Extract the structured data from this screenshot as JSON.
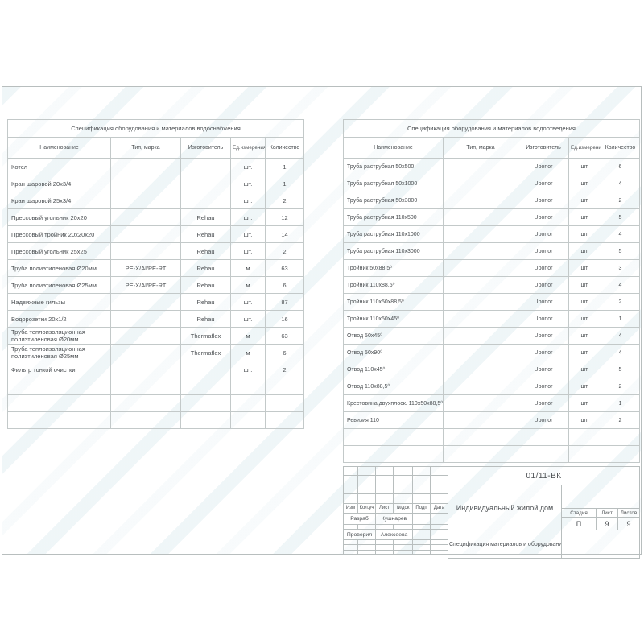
{
  "doc": {
    "number": "01/11-ВК",
    "object_name": "Индивидуальный жилой дом",
    "sheet_name": "Спецификация материалов и оборудования",
    "stamp": {
      "revision_headers": [
        "Изм",
        "Кол.уч",
        "Лист",
        "№док",
        "Подп",
        "Дата"
      ],
      "developed_label": "Разраб",
      "developed_name": "Кушнарев",
      "checked_label": "Проверил",
      "checked_name": "Алексеева",
      "stage_label": "Стадия",
      "sheet_label": "Лист",
      "sheets_label": "Листов",
      "stage_value": "П",
      "sheet_value": "9",
      "sheets_value": "9"
    }
  },
  "tables": [
    {
      "title": "Спецификация оборудования и материалов водоснабжения",
      "headers": [
        "Наименование",
        "Тип, марка",
        "Изготовитель",
        "Ед.измерения",
        "Количество"
      ],
      "rows": [
        [
          "Котел",
          "",
          "",
          "шт.",
          "1"
        ],
        [
          "Кран шаровой 20х3/4",
          "",
          "",
          "шт.",
          "1"
        ],
        [
          "Кран шаровой 25х3/4",
          "",
          "",
          "шт.",
          "2"
        ],
        [
          "Прессовый угольник 20х20",
          "",
          "Rehau",
          "шт.",
          "12"
        ],
        [
          "Прессовый тройник 20х20х20",
          "",
          "Rehau",
          "шт.",
          "14"
        ],
        [
          "Прессовый угольник 25х25",
          "",
          "Rehau",
          "шт.",
          "2"
        ],
        [
          "Труба полиэтиленовая Ø20мм",
          "PE-X/Al/PE-RT",
          "Rehau",
          "м",
          "63"
        ],
        [
          "Труба полиэтиленовая Ø25мм",
          "PE-X/Al/PE-RT",
          "Rehau",
          "м",
          "6"
        ],
        [
          "Надвижные гильзы",
          "",
          "Rehau",
          "шт.",
          "87"
        ],
        [
          "Водорозетки 20х1/2",
          "",
          "Rehau",
          "шт.",
          "16"
        ],
        [
          "Труба теплоизоляционная полиэтиленовая Ø20мм",
          "",
          "Thermaflex",
          "м",
          "63"
        ],
        [
          "Труба теплоизоляционная полиэтиленовая Ø25мм",
          "",
          "Thermaflex",
          "м",
          "6"
        ],
        [
          "Фильтр тонкой очистки",
          "",
          "",
          "шт.",
          "2"
        ]
      ],
      "empty_rows": 3
    },
    {
      "title": "Спецификация оборудования и материалов водоотведения",
      "headers": [
        "Наименование",
        "Тип, марка",
        "Изготовитель",
        "Ед.измерения",
        "Количество"
      ],
      "rows": [
        [
          "Труба раструбная 50х500",
          "",
          "Uponor",
          "шт.",
          "6"
        ],
        [
          "Труба раструбная 50х1000",
          "",
          "Uponor",
          "шт.",
          "4"
        ],
        [
          "Труба раструбная 50х3000",
          "",
          "Uponor",
          "шт.",
          "2"
        ],
        [
          "Труба раструбная 110х500",
          "",
          "Uponor",
          "шт.",
          "5"
        ],
        [
          "Труба раструбная 110х1000",
          "",
          "Uponor",
          "шт.",
          "4"
        ],
        [
          "Труба раструбная 110х3000",
          "",
          "Uponor",
          "шт.",
          "5"
        ],
        [
          "Тройник 50х88,5⁰",
          "",
          "Uponor",
          "шт.",
          "3"
        ],
        [
          "Тройник 110х88,5⁰",
          "",
          "Uponor",
          "шт.",
          "4"
        ],
        [
          "Тройник 110х50х88,5⁰",
          "",
          "Uponor",
          "шт.",
          "2"
        ],
        [
          "Тройник 110х50х45⁰",
          "",
          "Uponor",
          "шт.",
          "1"
        ],
        [
          "Отвод 50х45⁰",
          "",
          "Uponor",
          "шт.",
          "4"
        ],
        [
          "Отвод 50х90⁰",
          "",
          "Uponor",
          "шт.",
          "4"
        ],
        [
          "Отвод 110х45⁰",
          "",
          "Uponor",
          "шт.",
          "5"
        ],
        [
          "Отвод 110х88,5⁰",
          "",
          "Uponor",
          "шт.",
          "2"
        ],
        [
          "Крестовина двухплоск. 110х50х88,5⁰",
          "",
          "Uponor",
          "шт.",
          "1"
        ],
        [
          "Ревизия 110",
          "",
          "Uponor",
          "шт.",
          "2"
        ]
      ],
      "empty_rows": 2
    }
  ]
}
